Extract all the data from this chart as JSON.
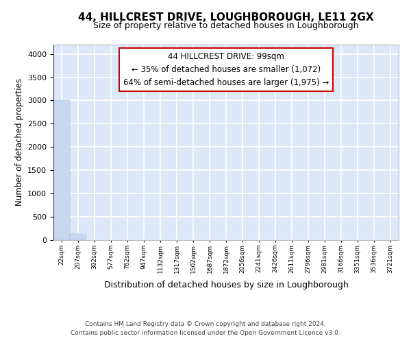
{
  "title": "44, HILLCREST DRIVE, LOUGHBOROUGH, LE11 2GX",
  "subtitle": "Size of property relative to detached houses in Loughborough",
  "xlabel": "Distribution of detached houses by size in Loughborough",
  "ylabel": "Number of detached properties",
  "bar_labels": [
    "22sqm",
    "207sqm",
    "392sqm",
    "577sqm",
    "762sqm",
    "947sqm",
    "1132sqm",
    "1317sqm",
    "1502sqm",
    "1687sqm",
    "1872sqm",
    "2056sqm",
    "2241sqm",
    "2426sqm",
    "2611sqm",
    "2796sqm",
    "2981sqm",
    "3166sqm",
    "3351sqm",
    "3536sqm",
    "3721sqm"
  ],
  "bar_heights": [
    3000,
    130,
    0,
    0,
    0,
    0,
    0,
    0,
    0,
    0,
    0,
    0,
    0,
    0,
    0,
    0,
    0,
    0,
    0,
    0,
    0
  ],
  "bar_color": "#c5d8f0",
  "background_color": "#dce8f8",
  "grid_color": "#ffffff",
  "annotation_line1": "44 HILLCREST DRIVE: 99sqm",
  "annotation_line2": "← 35% of detached houses are smaller (1,072)",
  "annotation_line3": "64% of semi-detached houses are larger (1,975) →",
  "annotation_box_edgecolor": "#cc0000",
  "property_vline_color": "#cc0000",
  "ylim": [
    0,
    4200
  ],
  "yticks": [
    0,
    500,
    1000,
    1500,
    2000,
    2500,
    3000,
    3500,
    4000
  ],
  "footer_line1": "Contains HM Land Registry data © Crown copyright and database right 2024.",
  "footer_line2": "Contains public sector information licensed under the Open Government Licence v3.0."
}
